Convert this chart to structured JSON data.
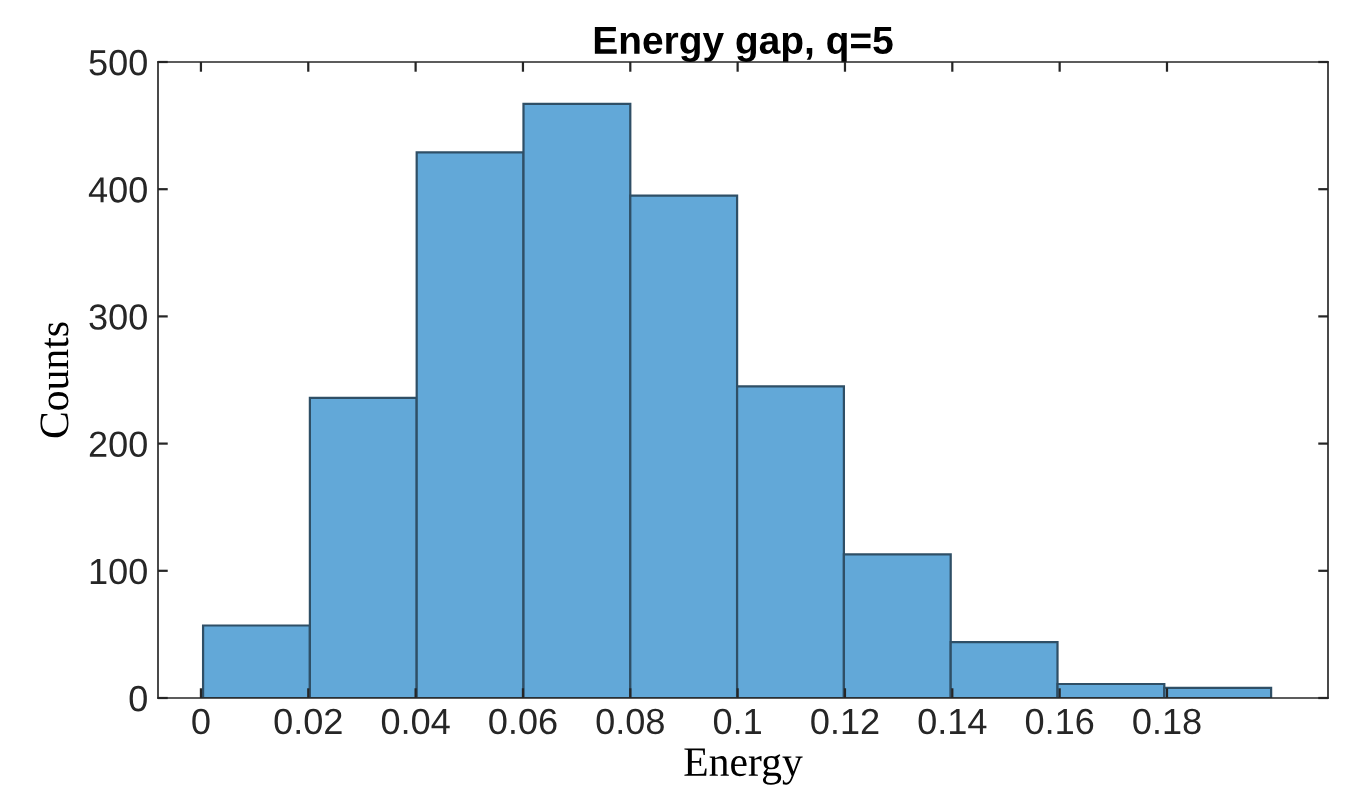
{
  "chart_data": {
    "type": "histogram",
    "title": "Energy gap, q=5",
    "xlabel": "Energy",
    "ylabel": "Counts",
    "bins": [
      0.0004,
      0.0203,
      0.0402,
      0.0601,
      0.08,
      0.0999,
      0.1198,
      0.1397,
      0.1596,
      0.1795,
      0.1994
    ],
    "values": [
      57,
      236,
      429,
      467,
      395,
      245,
      113,
      44,
      11,
      8
    ],
    "color": "#62a8d8",
    "xlim": [
      -0.008,
      0.21
    ],
    "xticks": [
      0,
      0.02,
      0.04,
      0.06,
      0.08,
      0.1,
      0.12,
      0.14,
      0.16,
      0.18
    ],
    "ylim": [
      0,
      500
    ],
    "yticks": [
      0,
      100,
      200,
      300,
      400,
      500
    ],
    "grid": false,
    "legend": false
  }
}
